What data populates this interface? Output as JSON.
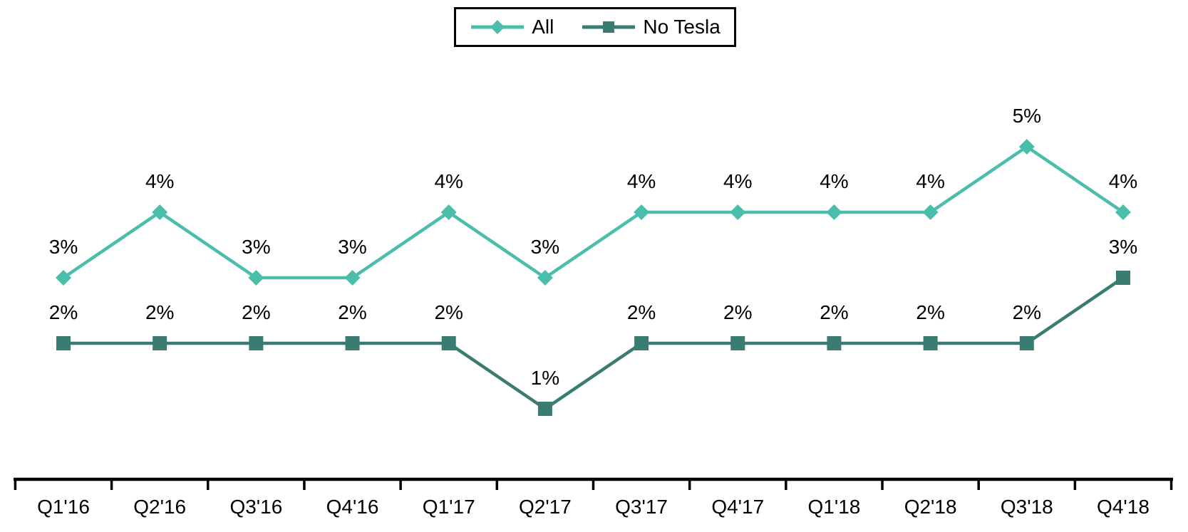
{
  "legend": {
    "position": "top-center",
    "items": [
      {
        "label": "All",
        "color": "#4BBEAB",
        "marker": "diamond"
      },
      {
        "label": "No Tesla",
        "color": "#3A7C71",
        "marker": "square"
      }
    ]
  },
  "chart_data": {
    "type": "line",
    "title": "",
    "xlabel": "",
    "ylabel": "",
    "ylim": [
      0,
      6
    ],
    "grid": false,
    "y_axis_visible": false,
    "legend_position": "top-center",
    "x_ticks_at_category_boundaries": true,
    "categories": [
      "Q1'16",
      "Q2'16",
      "Q3'16",
      "Q4'16",
      "Q1'17",
      "Q2'17",
      "Q3'17",
      "Q4'17",
      "Q1'18",
      "Q2'18",
      "Q3'18",
      "Q4'18"
    ],
    "series": [
      {
        "name": "All",
        "color": "#4BBEAB",
        "marker": "diamond",
        "values": [
          3,
          4,
          3,
          3,
          4,
          3,
          4,
          4,
          4,
          4,
          5,
          4
        ],
        "labels": [
          "3%",
          "4%",
          "3%",
          "3%",
          "4%",
          "3%",
          "4%",
          "4%",
          "4%",
          "4%",
          "5%",
          "4%"
        ]
      },
      {
        "name": "No Tesla",
        "color": "#3A7C71",
        "marker": "square",
        "values": [
          2,
          2,
          2,
          2,
          2,
          1,
          2,
          2,
          2,
          2,
          2,
          3
        ],
        "labels": [
          "2%",
          "2%",
          "2%",
          "2%",
          "2%",
          "1%",
          "2%",
          "2%",
          "2%",
          "2%",
          "2%",
          "3%"
        ]
      }
    ]
  }
}
